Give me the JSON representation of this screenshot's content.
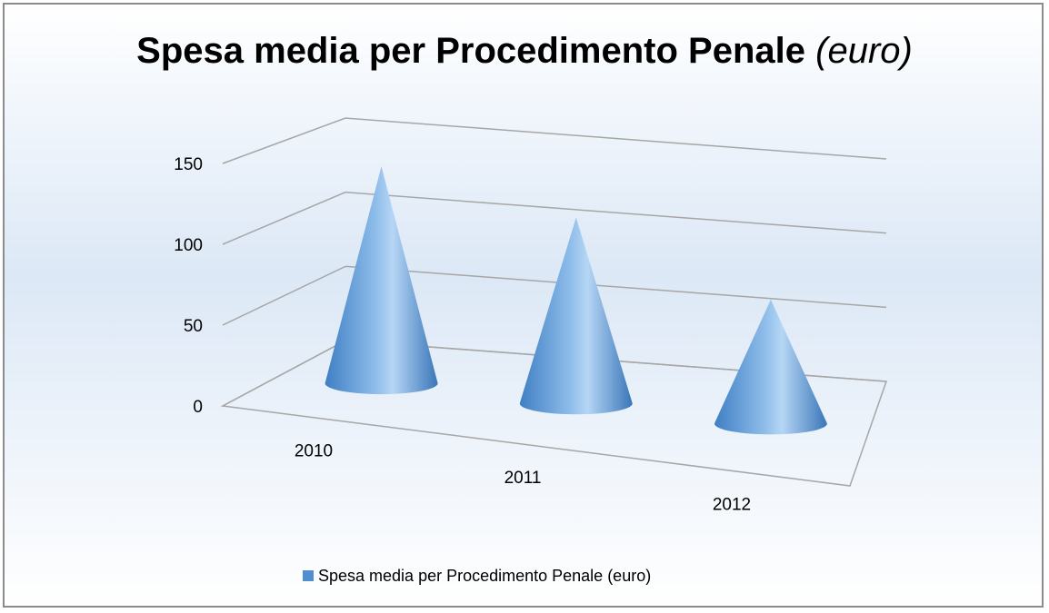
{
  "chart_data": {
    "type": "cone3d",
    "title": "Spesa media per Procedimento Penale",
    "title_unit": "(euro)",
    "categories": [
      "2010",
      "2011",
      "2012"
    ],
    "series": [
      {
        "name": "Spesa media per Procedimento Penale (euro)",
        "color": "#4f8fd0",
        "values": [
          140,
          120,
          80
        ]
      }
    ],
    "ylim": [
      0,
      150
    ],
    "yticks": [
      0,
      50,
      100,
      150
    ],
    "grid": true,
    "legend": "bottom"
  }
}
